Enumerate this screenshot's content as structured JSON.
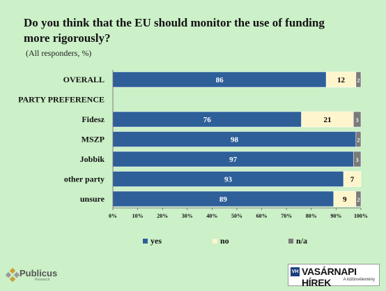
{
  "title_line1": "Do you think that the EU should monitor the use of funding",
  "title_line2": "more rigorously?",
  "subtitle": "(All responders, %)",
  "colors": {
    "yes": "#2e5f99",
    "no": "#fff5cc",
    "na": "#7a7a7a",
    "background": "#ccf0c8"
  },
  "chart_data": {
    "type": "bar",
    "orientation": "horizontal",
    "stacked": true,
    "title": "Do you think that the EU should monitor the use of funding more rigorously?",
    "subtitle": "(All responders, %)",
    "categories": [
      "OVERALL",
      "PARTY PREFERENCE",
      "Fidesz",
      "MSZP",
      "Jobbik",
      "other party",
      "unsure"
    ],
    "series": [
      {
        "name": "yes",
        "values": [
          86,
          null,
          76,
          98,
          97,
          93,
          89
        ]
      },
      {
        "name": "no",
        "values": [
          12,
          null,
          21,
          null,
          null,
          7,
          9
        ]
      },
      {
        "name": "n/a",
        "values": [
          2,
          null,
          3,
          2,
          3,
          null,
          2
        ]
      }
    ],
    "xlim": [
      0,
      100
    ],
    "x_ticks": [
      "0%",
      "10%",
      "20%",
      "30%",
      "40%",
      "50%",
      "60%",
      "70%",
      "80%",
      "90%",
      "100%"
    ],
    "legend": [
      "yes",
      "no",
      "n/a"
    ],
    "legend_position": "bottom",
    "grid": false
  },
  "footer": {
    "publicus": "Publicus",
    "publicus_sub": "Research",
    "newspaper_icon": "VH",
    "newspaper": "VASÁRNAPI HÍREK",
    "newspaper_sub": "A különvélemény"
  }
}
